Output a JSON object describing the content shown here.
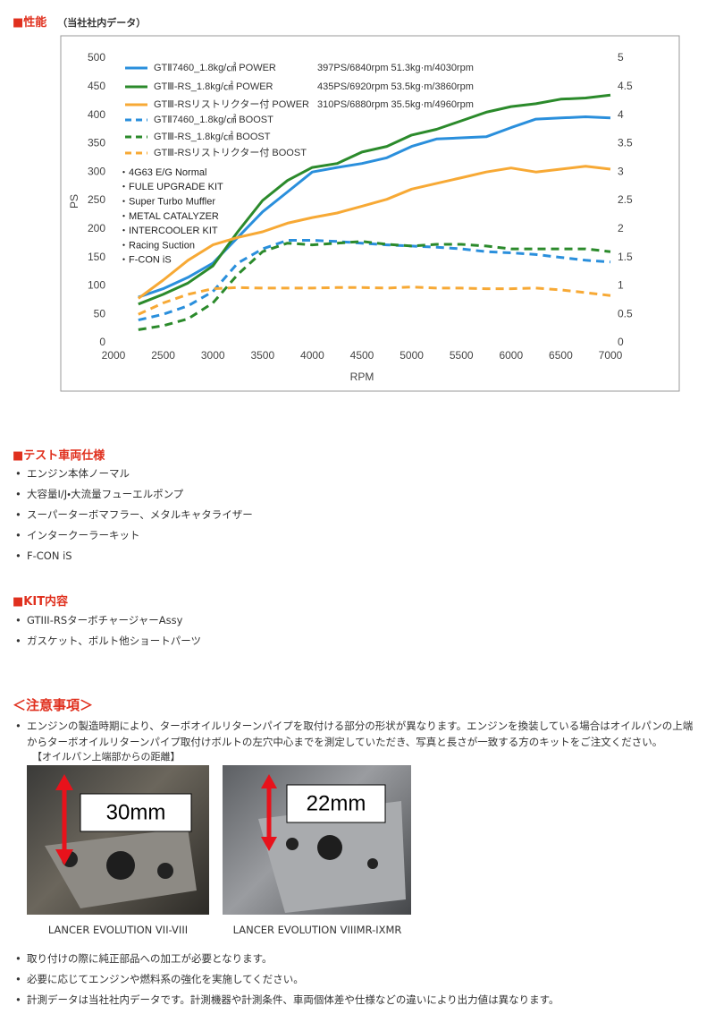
{
  "performance": {
    "heading": "■性能",
    "note": "（当社社内データ）"
  },
  "chart_data": {
    "type": "line",
    "xlabel": "RPM",
    "ylabel": "PS",
    "x": [
      2250,
      2500,
      2750,
      3000,
      3250,
      3500,
      3750,
      4000,
      4250,
      4500,
      4750,
      5000,
      5250,
      5500,
      5750,
      6000,
      6250,
      6500,
      6750,
      7000
    ],
    "xlim": [
      2000,
      7000
    ],
    "xticks": [
      2000,
      2500,
      3000,
      3500,
      4000,
      4500,
      5000,
      5500,
      6000,
      6500,
      7000
    ],
    "ylim": [
      0,
      500
    ],
    "yticks": [
      0,
      50,
      100,
      150,
      200,
      250,
      300,
      350,
      400,
      450,
      500
    ],
    "y2lim": [
      0,
      5
    ],
    "y2ticks": [
      0,
      0.5,
      1,
      1.5,
      2,
      2.5,
      3,
      3.5,
      4,
      4.5,
      5
    ],
    "grid": false,
    "series": [
      {
        "name": "GTⅡ7460_1.8kg/㎠ POWER",
        "spec": "397PS/6840rpm 51.3kg·m/4030rpm",
        "color": "#2a8fdc",
        "dashed": false,
        "values": [
          80,
          95,
          115,
          140,
          185,
          230,
          265,
          300,
          308,
          315,
          325,
          345,
          358,
          360,
          362,
          378,
          393,
          395,
          397,
          395
        ]
      },
      {
        "name": "GTⅢ-RS_1.8kg/㎠ POWER",
        "spec": "435PS/6920rpm 53.5kg·m/3860rpm",
        "color": "#2b8a2b",
        "dashed": false,
        "values": [
          68,
          85,
          105,
          135,
          195,
          250,
          285,
          308,
          315,
          335,
          345,
          365,
          375,
          390,
          405,
          415,
          420,
          428,
          430,
          435
        ]
      },
      {
        "name": "GTⅢ-RSリストリクター付 POWER",
        "spec": "310PS/6880rpm 35.5kg·m/4960rpm",
        "color": "#f7a935",
        "dashed": false,
        "values": [
          78,
          110,
          145,
          172,
          185,
          195,
          210,
          220,
          228,
          240,
          252,
          270,
          280,
          290,
          300,
          307,
          300,
          305,
          310,
          305
        ]
      },
      {
        "name": "GTⅡ7460_1.8kg/㎠ BOOST",
        "color": "#2a8fdc",
        "dashed": true,
        "axis": "y2",
        "values": [
          0.4,
          0.5,
          0.65,
          0.9,
          1.4,
          1.65,
          1.8,
          1.8,
          1.78,
          1.75,
          1.72,
          1.7,
          1.68,
          1.65,
          1.6,
          1.58,
          1.55,
          1.5,
          1.45,
          1.42
        ]
      },
      {
        "name": "GTⅢ-RS_1.8kg/㎠ BOOST",
        "color": "#2b8a2b",
        "dashed": true,
        "axis": "y2",
        "values": [
          0.23,
          0.3,
          0.42,
          0.7,
          1.2,
          1.6,
          1.75,
          1.72,
          1.75,
          1.78,
          1.73,
          1.7,
          1.73,
          1.73,
          1.7,
          1.65,
          1.65,
          1.65,
          1.65,
          1.6
        ]
      },
      {
        "name": "GTⅢ-RSリストリクター付 BOOST",
        "color": "#f7a935",
        "dashed": true,
        "axis": "y2",
        "values": [
          0.5,
          0.7,
          0.85,
          0.95,
          0.97,
          0.96,
          0.96,
          0.96,
          0.97,
          0.97,
          0.96,
          0.98,
          0.96,
          0.96,
          0.95,
          0.95,
          0.96,
          0.93,
          0.88,
          0.83
        ]
      }
    ],
    "notes": [
      "・4G63 E/G Normal",
      "・FULE UPGRADE KIT",
      "・Super Turbo Muffler",
      "・METAL CATALYZER",
      "・INTERCOOLER KIT",
      "・Racing Suction",
      "・F-CON iS"
    ]
  },
  "test_vehicle": {
    "heading": "■テスト車両仕様",
    "items": [
      "エンジン本体ノーマル",
      "大容量I/J・大流量フューエルポンプ",
      "スーパーターボマフラー、メタルキャタライザー",
      "インタークーラーキット",
      "F-CON iS"
    ]
  },
  "kit": {
    "heading": "■KIT内容",
    "items": [
      "GTIII-RSターボチャージャーAssy",
      "ガスケット、ボルト他ショートパーツ"
    ]
  },
  "cautions": {
    "heading": "＜注意事項＞",
    "intro": "エンジンの製造時期により、ターボオイルリターンパイプを取付ける部分の形状が異なります。エンジンを換装している場合はオイルパンの上端からターボオイルリターンパイプ取付けボルトの左穴中心までを測定していただき、写真と長さが一致する方のキットをご注文ください。",
    "subnote": "【オイルパン上端部からの距離】",
    "photos": [
      {
        "label": "30mm",
        "caption": "LANCER EVOLUTION VII-VIII"
      },
      {
        "label": "22mm",
        "caption": "LANCER EVOLUTION VIIIMR-IXMR"
      }
    ],
    "items": [
      "取り付けの際に純正部品への加工が必要となります。",
      "必要に応じてエンジンや燃料系の強化を実施してください。",
      "計測データは当社社内データです。計測機器や計測条件、車両個体差や仕様などの違いにより出力値は異なります。"
    ]
  }
}
